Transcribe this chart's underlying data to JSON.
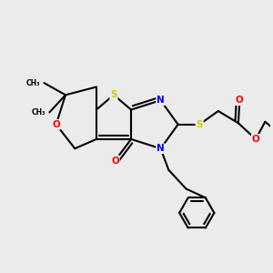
{
  "bg_color": "#ebebeb",
  "atom_colors": {
    "S": "#cccc00",
    "N": "#0000ff",
    "O": "#ff0000",
    "C": "#000000"
  },
  "bond_color": "#000000",
  "bond_width": 1.5
}
